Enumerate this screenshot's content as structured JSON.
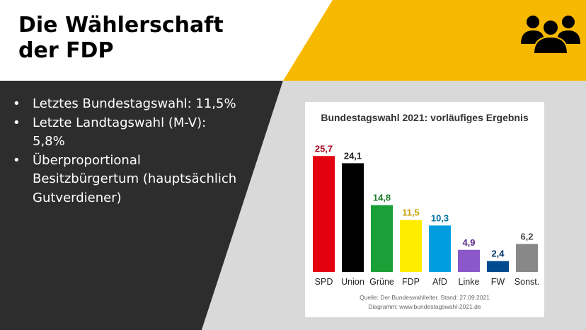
{
  "slide": {
    "title_lines": [
      "Die Wählerschaft",
      "der FDP"
    ],
    "icon": "users-group-icon",
    "accent_color": "#f7b900",
    "dark_panel_color": "#2d2d2d",
    "bullets": [
      "Letztes Bundestagswahl: 11,5%",
      "Letzte Landtagswahl (M-V): 5,8%",
      "Überproportional Besitzbürgertum (hauptsächlich Gutverdiener)"
    ]
  },
  "chart_data": {
    "type": "bar",
    "title": "Bundestagswahl 2021: vorläufiges Ergebnis",
    "categories": [
      "SPD",
      "Union",
      "Grüne",
      "FDP",
      "AfD",
      "Linke",
      "FW",
      "Sonst."
    ],
    "values": [
      25.7,
      24.1,
      14.8,
      11.5,
      10.3,
      4.9,
      2.4,
      6.2
    ],
    "value_labels": [
      "25,7",
      "24,1",
      "14,8",
      "11,5",
      "10,3",
      "4,9",
      "2,4",
      "6,2"
    ],
    "colors": [
      "#e3000f",
      "#000000",
      "#1aa037",
      "#ffed00",
      "#009ee0",
      "#8b57c9",
      "#004a90",
      "#888888"
    ],
    "label_colors": [
      "#a3001b",
      "#222222",
      "#1a7a2a",
      "#c9a000",
      "#00709f",
      "#5a2a87",
      "#00356b",
      "#444444"
    ],
    "ylim": [
      0,
      27
    ],
    "grid": false,
    "source_lines": [
      "Quelle: Der Bundeswahlleiter. Stand: 27.09.2021",
      "Diagramm: www.bundestagswahl-2021.de"
    ]
  }
}
